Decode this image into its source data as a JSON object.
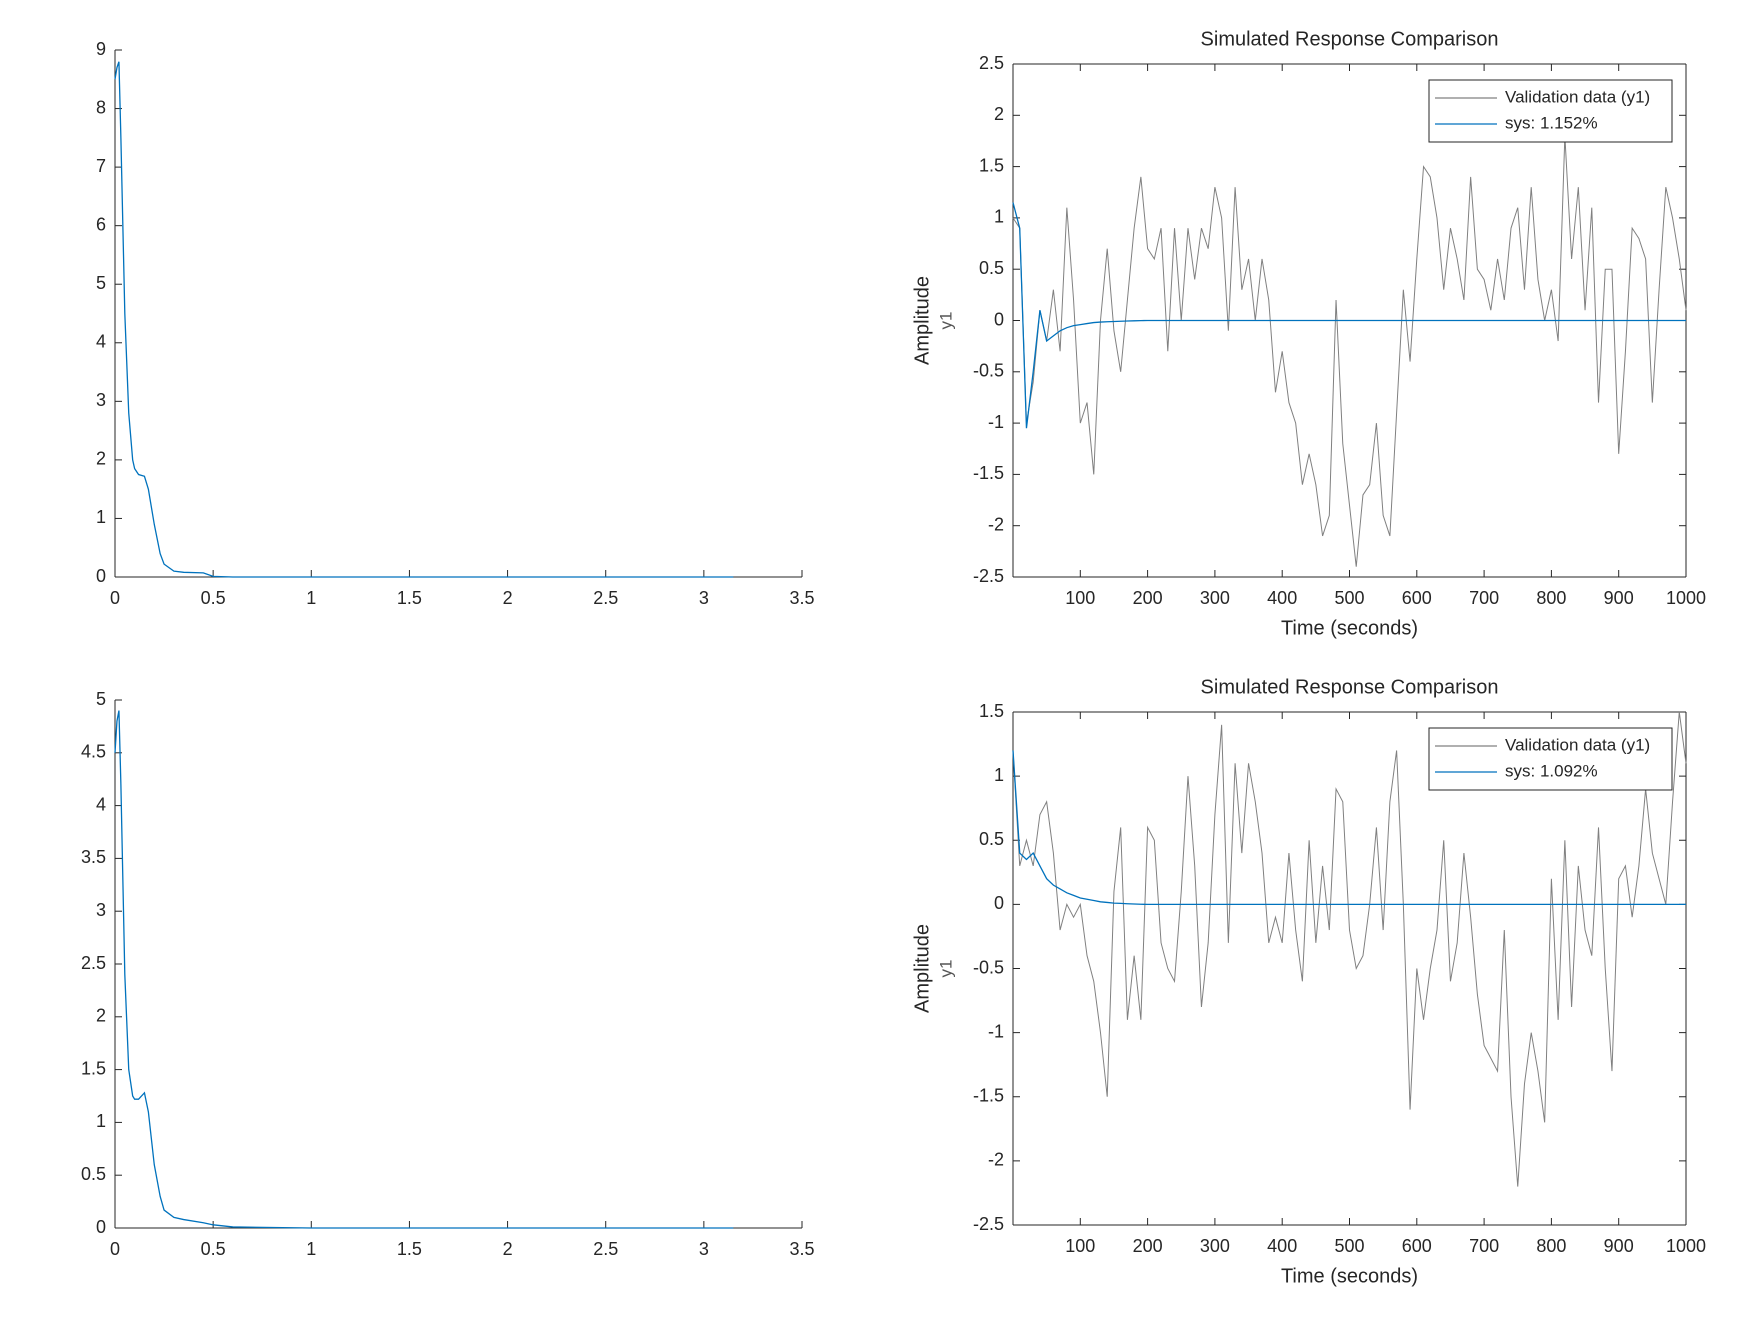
{
  "chart_data": [
    {
      "type": "line",
      "x": [
        0,
        0.01,
        0.02,
        0.03,
        0.05,
        0.07,
        0.09,
        0.1,
        0.12,
        0.15,
        0.17,
        0.2,
        0.23,
        0.25,
        0.3,
        0.35,
        0.45,
        0.5,
        0.6,
        1,
        2,
        3,
        3.15
      ],
      "series": [
        {
          "color": "#0072bd",
          "values": [
            8.5,
            8.7,
            8.8,
            7.5,
            4.5,
            2.8,
            2.0,
            1.85,
            1.75,
            1.72,
            1.5,
            0.9,
            0.4,
            0.22,
            0.1,
            0.08,
            0.07,
            0.01,
            0,
            0,
            0,
            0,
            0
          ]
        }
      ],
      "xlim": [
        0,
        3.5
      ],
      "xticks": [
        0,
        0.5,
        1,
        1.5,
        2,
        2.5,
        3,
        3.5
      ],
      "ylim": [
        0,
        9
      ],
      "yticks": [
        0,
        1,
        2,
        3,
        4,
        5,
        6,
        7,
        8,
        9
      ],
      "box": false
    },
    {
      "type": "line",
      "title": "Simulated Response Comparison",
      "xlabel": "Time (seconds)",
      "ylabel": "Amplitude",
      "output_label": "y1",
      "x": [
        0,
        10,
        20,
        30,
        40,
        50,
        60,
        70,
        80,
        90,
        100,
        110,
        120,
        130,
        140,
        150,
        160,
        170,
        180,
        190,
        200,
        210,
        220,
        230,
        240,
        250,
        260,
        270,
        280,
        290,
        300,
        310,
        320,
        330,
        340,
        350,
        360,
        370,
        380,
        390,
        400,
        410,
        420,
        430,
        440,
        450,
        460,
        470,
        480,
        490,
        500,
        510,
        520,
        530,
        540,
        550,
        560,
        570,
        580,
        590,
        600,
        610,
        620,
        630,
        640,
        650,
        660,
        670,
        680,
        690,
        700,
        710,
        720,
        730,
        740,
        750,
        760,
        770,
        780,
        790,
        800,
        810,
        820,
        830,
        840,
        850,
        860,
        870,
        880,
        890,
        900,
        910,
        920,
        930,
        940,
        950,
        960,
        970,
        980,
        990,
        1000
      ],
      "series": [
        {
          "name": "Validation data (y1)",
          "color": "#808080",
          "values": [
            1.0,
            0.9,
            -1.0,
            -0.6,
            0.1,
            -0.2,
            0.3,
            -0.3,
            1.1,
            0.2,
            -1.0,
            -0.8,
            -1.5,
            0.0,
            0.7,
            -0.1,
            -0.5,
            0.2,
            0.9,
            1.4,
            0.7,
            0.6,
            0.9,
            -0.3,
            0.9,
            0.0,
            0.9,
            0.4,
            0.9,
            0.7,
            1.3,
            1.0,
            -0.1,
            1.3,
            0.3,
            0.6,
            0.0,
            0.6,
            0.2,
            -0.7,
            -0.3,
            -0.8,
            -1.0,
            -1.6,
            -1.3,
            -1.6,
            -2.1,
            -1.9,
            0.2,
            -1.2,
            -1.8,
            -2.4,
            -1.7,
            -1.6,
            -1.0,
            -1.9,
            -2.1,
            -0.9,
            0.3,
            -0.4,
            0.6,
            1.5,
            1.4,
            1.0,
            0.3,
            0.9,
            0.6,
            0.2,
            1.4,
            0.5,
            0.4,
            0.1,
            0.6,
            0.2,
            0.9,
            1.1,
            0.3,
            1.3,
            0.4,
            0.0,
            0.3,
            -0.2,
            1.8,
            0.6,
            1.3,
            0.1,
            1.1,
            -0.8,
            0.5,
            0.5,
            -1.3,
            -0.3,
            0.9,
            0.8,
            0.6,
            -0.8,
            0.3,
            1.3,
            1.0,
            0.6,
            0.1
          ]
        },
        {
          "name": "sys: 1.152%",
          "color": "#0072bd",
          "values": [
            1.15,
            0.9,
            -1.05,
            -0.5,
            0.1,
            -0.2,
            -0.15,
            -0.1,
            -0.07,
            -0.05,
            -0.04,
            -0.03,
            -0.02,
            -0.015,
            -0.012,
            -0.01,
            -0.007,
            -0.005,
            -0.003,
            -0.001,
            0,
            0,
            0,
            0,
            0,
            0,
            0,
            0,
            0,
            0,
            0,
            0,
            0,
            0,
            0,
            0,
            0,
            0,
            0,
            0,
            0,
            0,
            0,
            0,
            0,
            0,
            0,
            0,
            0,
            0,
            0,
            0,
            0,
            0,
            0,
            0,
            0,
            0,
            0,
            0,
            0,
            0,
            0,
            0,
            0,
            0,
            0,
            0,
            0,
            0,
            0,
            0,
            0,
            0,
            0,
            0,
            0,
            0,
            0,
            0,
            0,
            0,
            0,
            0,
            0,
            0,
            0,
            0,
            0,
            0,
            0,
            0,
            0,
            0,
            0,
            0,
            0,
            0,
            0,
            0,
            0
          ]
        }
      ],
      "xlim": [
        0,
        1000
      ],
      "xticks": [
        100,
        200,
        300,
        400,
        500,
        600,
        700,
        800,
        900,
        1000
      ],
      "ylim": [
        -2.5,
        2.5
      ],
      "yticks": [
        -2.5,
        -2,
        -1.5,
        -1,
        -0.5,
        0,
        0.5,
        1,
        1.5,
        2,
        2.5
      ],
      "box": true,
      "legend": "upper right"
    },
    {
      "type": "line",
      "x": [
        0,
        0.01,
        0.02,
        0.03,
        0.05,
        0.07,
        0.09,
        0.1,
        0.12,
        0.15,
        0.17,
        0.2,
        0.23,
        0.25,
        0.3,
        0.35,
        0.45,
        0.5,
        0.6,
        1,
        2,
        3,
        3.15
      ],
      "series": [
        {
          "color": "#0072bd",
          "values": [
            4.5,
            4.8,
            4.9,
            4.2,
            2.4,
            1.5,
            1.25,
            1.22,
            1.22,
            1.28,
            1.1,
            0.6,
            0.3,
            0.17,
            0.1,
            0.08,
            0.05,
            0.03,
            0.01,
            0,
            0,
            0,
            0
          ]
        }
      ],
      "xlim": [
        0,
        3.5
      ],
      "xticks": [
        0,
        0.5,
        1,
        1.5,
        2,
        2.5,
        3,
        3.5
      ],
      "ylim": [
        0,
        5
      ],
      "yticks": [
        0,
        0.5,
        1,
        1.5,
        2,
        2.5,
        3,
        3.5,
        4,
        4.5,
        5
      ],
      "box": false
    },
    {
      "type": "line",
      "title": "Simulated Response Comparison",
      "xlabel": "Time (seconds)",
      "ylabel": "Amplitude",
      "output_label": "y1",
      "x": [
        0,
        10,
        20,
        30,
        40,
        50,
        60,
        70,
        80,
        90,
        100,
        110,
        120,
        130,
        140,
        150,
        160,
        170,
        180,
        190,
        200,
        210,
        220,
        230,
        240,
        250,
        260,
        270,
        280,
        290,
        300,
        310,
        320,
        330,
        340,
        350,
        360,
        370,
        380,
        390,
        400,
        410,
        420,
        430,
        440,
        450,
        460,
        470,
        480,
        490,
        500,
        510,
        520,
        530,
        540,
        550,
        560,
        570,
        580,
        590,
        600,
        610,
        620,
        630,
        640,
        650,
        660,
        670,
        680,
        690,
        700,
        710,
        720,
        730,
        740,
        750,
        760,
        770,
        780,
        790,
        800,
        810,
        820,
        830,
        840,
        850,
        860,
        870,
        880,
        890,
        900,
        910,
        920,
        930,
        940,
        950,
        960,
        970,
        980,
        990,
        1000
      ],
      "series": [
        {
          "name": "Validation data (y1)",
          "color": "#808080",
          "values": [
            1.2,
            0.3,
            0.5,
            0.3,
            0.7,
            0.8,
            0.4,
            -0.2,
            0.0,
            -0.1,
            0.0,
            -0.4,
            -0.6,
            -1.0,
            -1.5,
            0.1,
            0.6,
            -0.9,
            -0.4,
            -0.9,
            0.6,
            0.5,
            -0.3,
            -0.5,
            -0.6,
            0.1,
            1.0,
            0.3,
            -0.8,
            -0.3,
            0.7,
            1.4,
            -0.3,
            1.1,
            0.4,
            1.1,
            0.8,
            0.4,
            -0.3,
            -0.1,
            -0.3,
            0.4,
            -0.2,
            -0.6,
            0.5,
            -0.3,
            0.3,
            -0.2,
            0.9,
            0.8,
            -0.2,
            -0.5,
            -0.4,
            0.0,
            0.6,
            -0.2,
            0.8,
            1.2,
            0.0,
            -1.6,
            -0.5,
            -0.9,
            -0.5,
            -0.2,
            0.5,
            -0.6,
            -0.3,
            0.4,
            -0.1,
            -0.7,
            -1.1,
            -1.2,
            -1.3,
            -0.2,
            -1.5,
            -2.2,
            -1.4,
            -1.0,
            -1.3,
            -1.7,
            0.2,
            -0.9,
            0.5,
            -0.8,
            0.3,
            -0.2,
            -0.4,
            0.6,
            -0.5,
            -1.3,
            0.2,
            0.3,
            -0.1,
            0.3,
            0.9,
            0.4,
            0.2,
            0.0,
            0.8,
            1.5,
            1.1
          ]
        },
        {
          "name": "sys: 1.092%",
          "color": "#0072bd",
          "values": [
            1.2,
            0.4,
            0.35,
            0.4,
            0.3,
            0.2,
            0.15,
            0.12,
            0.09,
            0.07,
            0.05,
            0.04,
            0.03,
            0.02,
            0.015,
            0.01,
            0.008,
            0.005,
            0.003,
            0.001,
            0,
            0,
            0,
            0,
            0,
            0,
            0,
            0,
            0,
            0,
            0,
            0,
            0,
            0,
            0,
            0,
            0,
            0,
            0,
            0,
            0,
            0,
            0,
            0,
            0,
            0,
            0,
            0,
            0,
            0,
            0,
            0,
            0,
            0,
            0,
            0,
            0,
            0,
            0,
            0,
            0,
            0,
            0,
            0,
            0,
            0,
            0,
            0,
            0,
            0,
            0,
            0,
            0,
            0,
            0,
            0,
            0,
            0,
            0,
            0,
            0,
            0,
            0,
            0,
            0,
            0,
            0,
            0,
            0,
            0,
            0,
            0,
            0,
            0,
            0,
            0,
            0,
            0,
            0,
            0,
            0
          ]
        }
      ],
      "xlim": [
        0,
        1000
      ],
      "xticks": [
        100,
        200,
        300,
        400,
        500,
        600,
        700,
        800,
        900,
        1000
      ],
      "ylim": [
        -2.5,
        1.5
      ],
      "yticks": [
        -2.5,
        -2,
        -1.5,
        -1,
        -0.5,
        0,
        0.5,
        1,
        1.5
      ],
      "box": true,
      "legend": "upper right"
    }
  ]
}
